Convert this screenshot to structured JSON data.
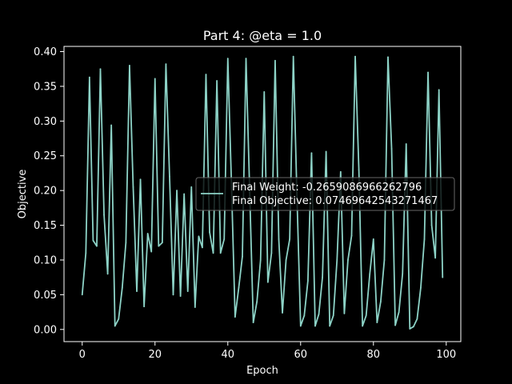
{
  "chart_data": {
    "type": "line",
    "title": "Part 4: @eta = 1.0",
    "xlabel": "Epoch",
    "ylabel": "Objective",
    "xlim": [
      -5,
      104
    ],
    "ylim": [
      -0.0175,
      0.4075
    ],
    "xticks": [
      0,
      20,
      40,
      60,
      80,
      100
    ],
    "yticks": [
      0.0,
      0.05,
      0.1,
      0.15,
      0.2,
      0.25,
      0.3,
      0.35,
      0.4
    ],
    "xtick_labels": [
      "0",
      "20",
      "40",
      "60",
      "80",
      "100"
    ],
    "ytick_labels": [
      "0.00",
      "0.05",
      "0.10",
      "0.15",
      "0.20",
      "0.25",
      "0.30",
      "0.35",
      "0.40"
    ],
    "grid": false,
    "legend_position": "center-right",
    "colors": {
      "background": "#000000",
      "line": "#8dd3c7",
      "text": "#ffffff"
    },
    "legend_entries": [
      "Final Weight: -0.2659086966262796",
      "Final Objective: 0.07469642543271467"
    ],
    "series": [
      {
        "x": [
          0,
          1,
          2,
          3,
          4,
          5,
          6,
          7,
          8,
          9,
          10,
          11,
          12,
          13,
          14,
          15,
          16,
          17,
          18,
          19,
          20,
          21,
          22,
          23,
          24,
          25,
          26,
          27,
          28,
          29,
          30,
          31,
          32,
          33,
          34,
          35,
          36,
          37,
          38,
          39,
          40,
          41,
          42,
          43,
          44,
          45,
          46,
          47,
          48,
          49,
          50,
          51,
          52,
          53,
          54,
          55,
          56,
          57,
          58,
          59,
          60,
          61,
          62,
          63,
          64,
          65,
          66,
          67,
          68,
          69,
          70,
          71,
          72,
          73,
          74,
          75,
          76,
          77,
          78,
          79,
          80,
          81,
          82,
          83,
          84,
          85,
          86,
          87,
          88,
          89,
          90,
          91,
          92,
          93,
          94,
          95,
          96,
          97,
          98,
          99
        ],
        "y": [
          0.05,
          0.11,
          0.363,
          0.128,
          0.12,
          0.375,
          0.165,
          0.08,
          0.294,
          0.005,
          0.015,
          0.06,
          0.125,
          0.38,
          0.205,
          0.055,
          0.216,
          0.033,
          0.138,
          0.112,
          0.361,
          0.12,
          0.125,
          0.382,
          0.22,
          0.05,
          0.2,
          0.048,
          0.195,
          0.055,
          0.205,
          0.032,
          0.134,
          0.118,
          0.367,
          0.14,
          0.11,
          0.358,
          0.11,
          0.13,
          0.39,
          0.21,
          0.018,
          0.06,
          0.105,
          0.39,
          0.2,
          0.01,
          0.04,
          0.1,
          0.342,
          0.068,
          0.11,
          0.387,
          0.13,
          0.024,
          0.1,
          0.13,
          0.393,
          0.19,
          0.005,
          0.02,
          0.07,
          0.254,
          0.005,
          0.022,
          0.075,
          0.256,
          0.005,
          0.02,
          0.1,
          0.227,
          0.023,
          0.1,
          0.135,
          0.393,
          0.23,
          0.005,
          0.02,
          0.08,
          0.13,
          0.01,
          0.04,
          0.1,
          0.392,
          0.26,
          0.006,
          0.025,
          0.08,
          0.267,
          0.001,
          0.004,
          0.015,
          0.06,
          0.13,
          0.37,
          0.15,
          0.103,
          0.345,
          0.075
        ]
      }
    ]
  }
}
